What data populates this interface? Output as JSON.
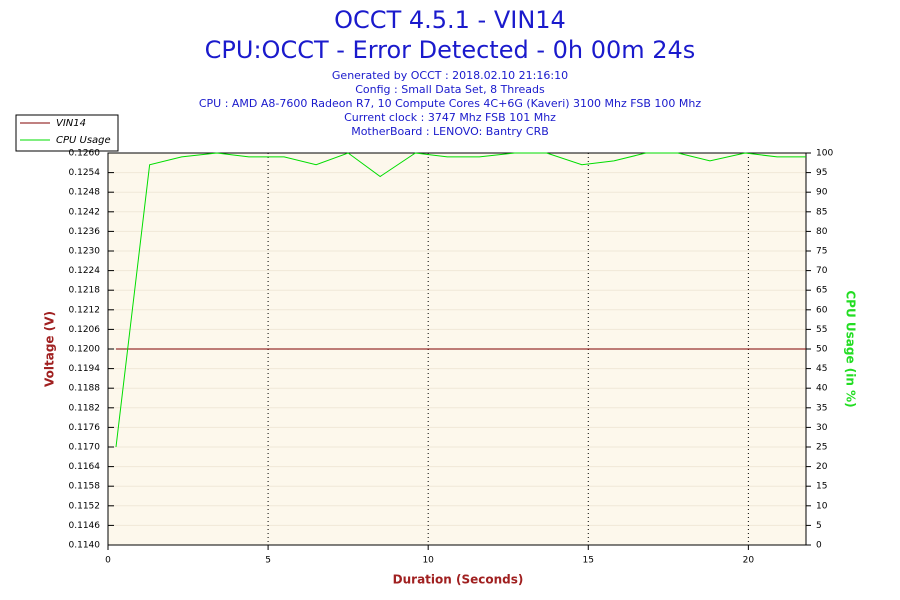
{
  "chart_data": {
    "type": "line",
    "title": "OCCT 4.5.1 - VIN14",
    "subtitle": "CPU:OCCT - Error Detected - 0h 00m 24s",
    "info_lines": [
      "Generated by OCCT : 2018.02.10 21:16:10",
      "Config : Small Data Set, 8 Threads",
      "CPU : AMD A8-7600 Radeon R7, 10 Compute Cores 4C+6G (Kaveri) 3100 Mhz FSB 100 Mhz",
      "Current clock : 3747 Mhz FSB 101 Mhz",
      "MotherBoard : LENOVO: Bantry CRB"
    ],
    "xlabel": "Duration (Seconds)",
    "ylabel": "Voltage (V)",
    "y2label": "CPU Usage (in %)",
    "x": [
      0.25,
      1.3,
      2.3,
      3.4,
      4.4,
      5.5,
      6.5,
      7.5,
      8.5,
      9.6,
      10.6,
      11.6,
      12.7,
      13.7,
      14.8,
      15.8,
      16.8,
      17.8,
      18.8,
      19.9,
      20.9,
      21.8
    ],
    "series": [
      {
        "name": "VIN14",
        "color": "#800000",
        "values": [
          0.12,
          0.12,
          0.12,
          0.12,
          0.12,
          0.12,
          0.12,
          0.12,
          0.12,
          0.12,
          0.12,
          0.12,
          0.12,
          0.12,
          0.12,
          0.12,
          0.12,
          0.12,
          0.12,
          0.12,
          0.12,
          0.12
        ]
      },
      {
        "name": "CPU Usage",
        "color": "#00dd00",
        "axis": "y2",
        "values": [
          25,
          97,
          99,
          100,
          99,
          99,
          97,
          100,
          94,
          100,
          99,
          99,
          100,
          100,
          97,
          98,
          100,
          100,
          98,
          100,
          99,
          99
        ]
      }
    ],
    "xlim": [
      0,
      21.8
    ],
    "xticks": [
      0,
      5,
      10,
      15,
      20
    ],
    "ylim": [
      0.114,
      0.126
    ],
    "yticks": [
      {
        "value": 0.114,
        "label": "0.1140"
      },
      {
        "value": 0.1146,
        "label": "0.1146"
      },
      {
        "value": 0.1152,
        "label": "0.1152"
      },
      {
        "value": 0.1158,
        "label": "0.1158"
      },
      {
        "value": 0.1164,
        "label": "0.1164"
      },
      {
        "value": 0.117,
        "label": "0.1170"
      },
      {
        "value": 0.1176,
        "label": "0.1176"
      },
      {
        "value": 0.1182,
        "label": "0.1182"
      },
      {
        "value": 0.1188,
        "label": "0.1188"
      },
      {
        "value": 0.1194,
        "label": "0.1194"
      },
      {
        "value": 0.12,
        "label": "0.1200"
      },
      {
        "value": 0.1206,
        "label": "0.1206"
      },
      {
        "value": 0.1212,
        "label": "0.1212"
      },
      {
        "value": 0.1218,
        "label": "0.1218"
      },
      {
        "value": 0.1224,
        "label": "0.1224"
      },
      {
        "value": 0.123,
        "label": "0.1230"
      },
      {
        "value": 0.1236,
        "label": "0.1236"
      },
      {
        "value": 0.1242,
        "label": "0.1242"
      },
      {
        "value": 0.1248,
        "label": "0.1248"
      },
      {
        "value": 0.1254,
        "label": "0.1254"
      },
      {
        "value": 0.126,
        "label": "0.1260"
      }
    ],
    "y2lim": [
      0,
      100
    ],
    "y2ticks": [
      0,
      5,
      10,
      15,
      20,
      25,
      30,
      35,
      40,
      45,
      50,
      55,
      60,
      65,
      70,
      75,
      80,
      85,
      90,
      95,
      100
    ],
    "grid": true,
    "legend": "top-left"
  }
}
